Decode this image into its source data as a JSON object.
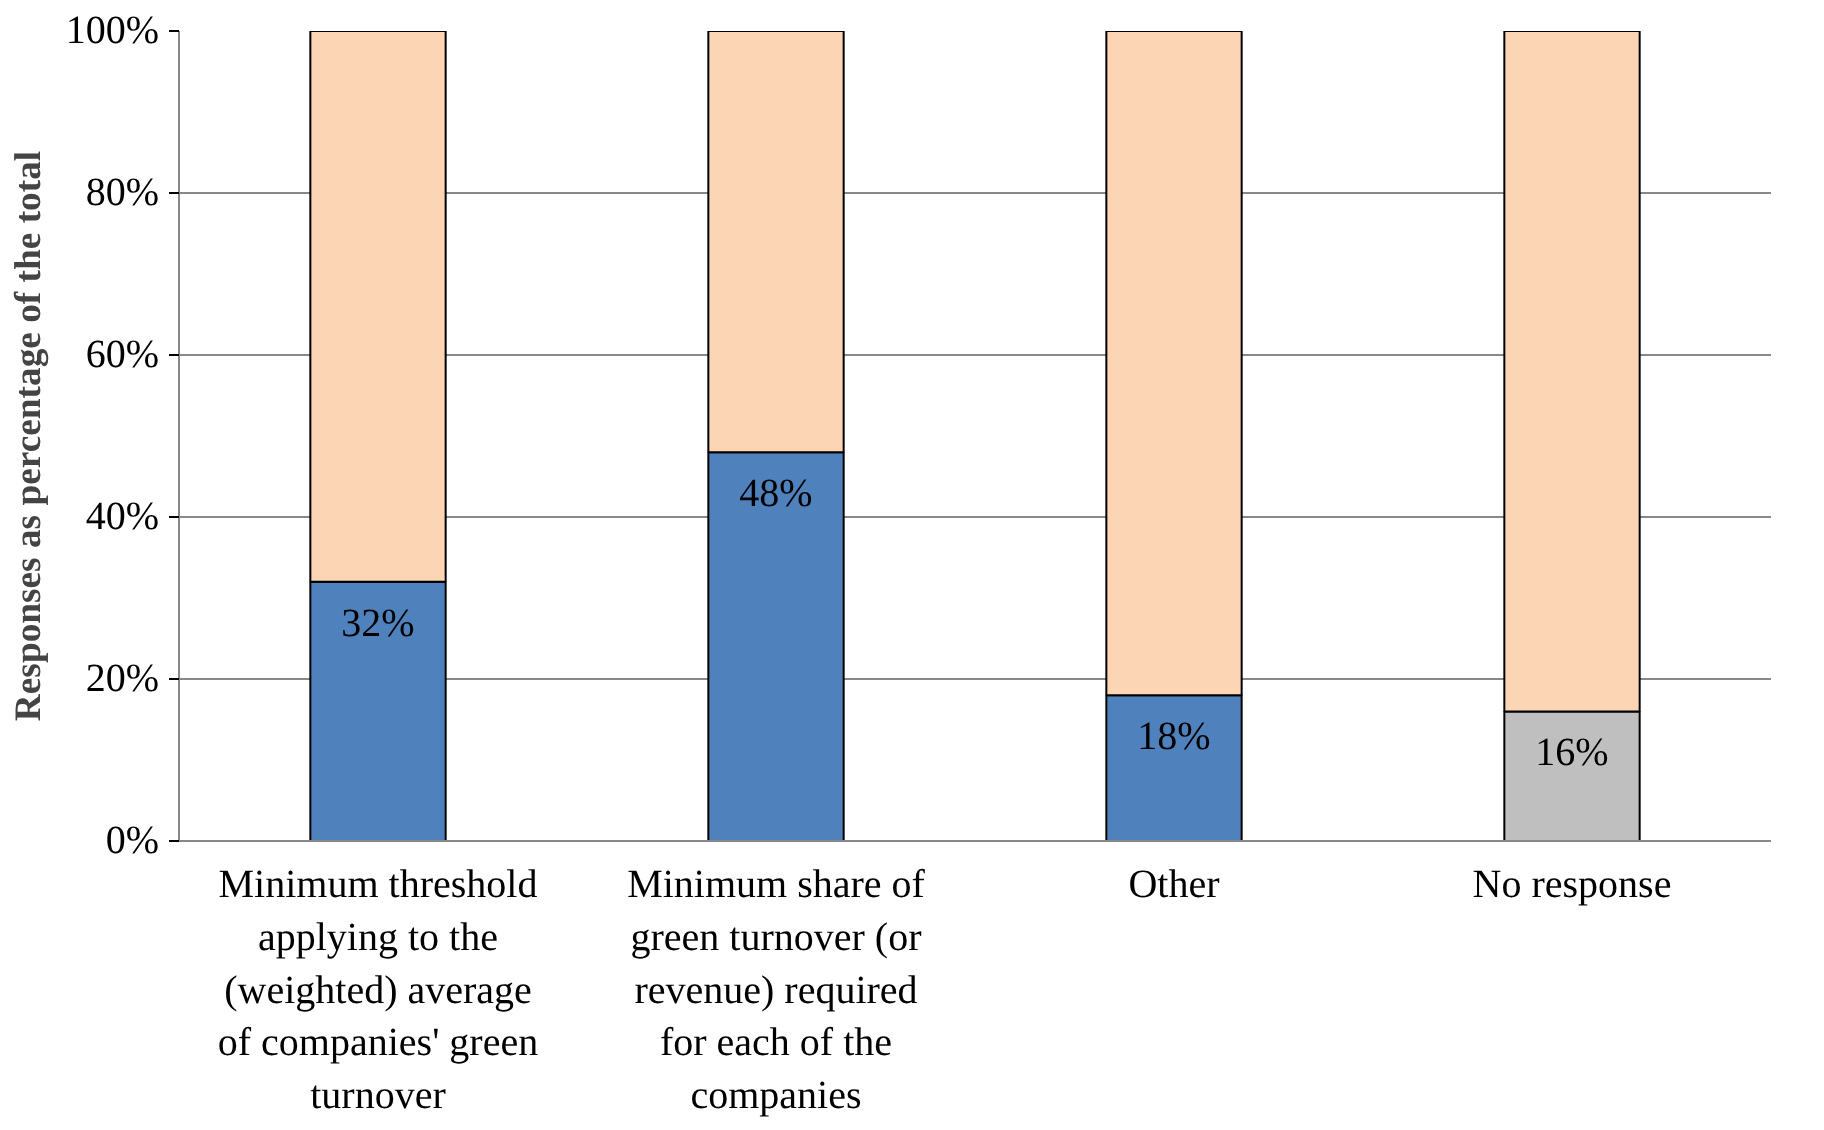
{
  "chart_data": {
    "type": "bar",
    "stacked": true,
    "ylabel": "Responses as percentage of the total",
    "categories": [
      "Minimum threshold applying to the (weighted) average of companies' green turnover",
      "Minimum share of green turnover (or revenue) required for each of the companies",
      "Other",
      "No response"
    ],
    "series": [
      {
        "colors": [
          "#4f81bd",
          "#4f81bd",
          "#4f81bd",
          "#bfbfbf"
        ],
        "values": [
          32,
          48,
          18,
          16
        ],
        "value_labels": [
          "32%",
          "48%",
          "18%",
          "16%"
        ]
      },
      {
        "color": "#fcd5b5",
        "values": [
          68,
          52,
          82,
          84
        ]
      }
    ],
    "ylim": [
      0,
      100
    ],
    "yticks": [
      {
        "value": 0,
        "label": "0%"
      },
      {
        "value": 20,
        "label": "20%"
      },
      {
        "value": 40,
        "label": "40%"
      },
      {
        "value": 60,
        "label": "60%"
      },
      {
        "value": 80,
        "label": "80%"
      },
      {
        "value": 100,
        "label": "100%"
      }
    ],
    "grid": "y"
  }
}
